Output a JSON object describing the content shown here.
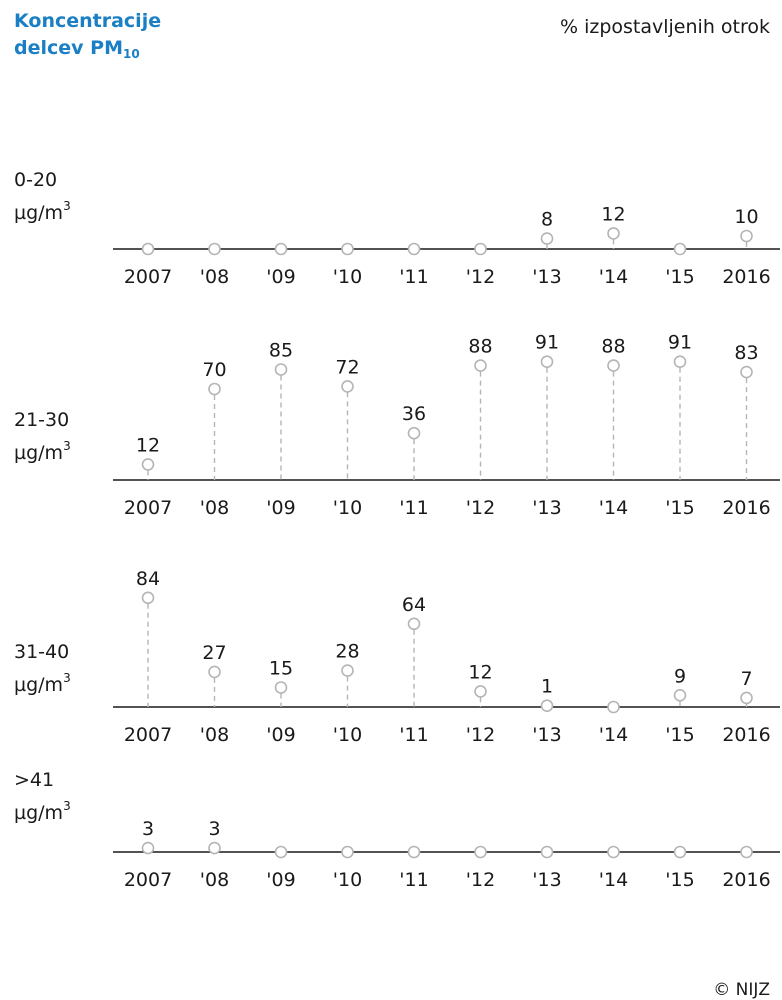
{
  "header": {
    "title_line1": "Koncentracije",
    "title_line2": "delcev PM",
    "title_sub": "10",
    "unit": "% izpostavljenih otrok"
  },
  "footer": {
    "copyright": "© NIJZ"
  },
  "colors": {
    "title": "#1a7fc4",
    "marker": "#b5b5b5",
    "axis": "#1a1a1a",
    "text": "#1a1a1a"
  },
  "chart_data": [
    {
      "type": "scatter",
      "row_label": "0-20",
      "row_unit": "µg/m",
      "row_unit_sup": "3",
      "categories": [
        "2007",
        "'08",
        "'09",
        "'10",
        "'11",
        "'12",
        "'13",
        "'14",
        "'15",
        "2016"
      ],
      "values": [
        0,
        0,
        0,
        0,
        0,
        0,
        8,
        12,
        0,
        10
      ],
      "labels": [
        "",
        "",
        "",
        "",
        "",
        "",
        "8",
        "12",
        "",
        "10"
      ]
    },
    {
      "type": "scatter",
      "row_label": "21-30",
      "row_unit": "µg/m",
      "row_unit_sup": "3",
      "categories": [
        "2007",
        "'08",
        "'09",
        "'10",
        "'11",
        "'12",
        "'13",
        "'14",
        "'15",
        "2016"
      ],
      "values": [
        12,
        70,
        85,
        72,
        36,
        88,
        91,
        88,
        91,
        83
      ],
      "labels": [
        "12",
        "70",
        "85",
        "72",
        "36",
        "88",
        "91",
        "88",
        "91",
        "83"
      ]
    },
    {
      "type": "scatter",
      "row_label": "31-40",
      "row_unit": "µg/m",
      "row_unit_sup": "3",
      "categories": [
        "2007",
        "'08",
        "'09",
        "'10",
        "'11",
        "'12",
        "'13",
        "'14",
        "'15",
        "2016"
      ],
      "values": [
        84,
        27,
        15,
        28,
        64,
        12,
        1,
        0,
        9,
        7
      ],
      "labels": [
        "84",
        "27",
        "15",
        "28",
        "64",
        "12",
        "1",
        "",
        "9",
        "7"
      ]
    },
    {
      "type": "scatter",
      "row_label": ">41",
      "row_unit": "µg/m",
      "row_unit_sup": "3",
      "categories": [
        "2007",
        "'08",
        "'09",
        "'10",
        "'11",
        "'12",
        "'13",
        "'14",
        "'15",
        "2016"
      ],
      "values": [
        3,
        3,
        0,
        0,
        0,
        0,
        0,
        0,
        0,
        0
      ],
      "labels": [
        "3",
        "3",
        "",
        "",
        "",
        "",
        "",
        "",
        "",
        ""
      ]
    }
  ]
}
